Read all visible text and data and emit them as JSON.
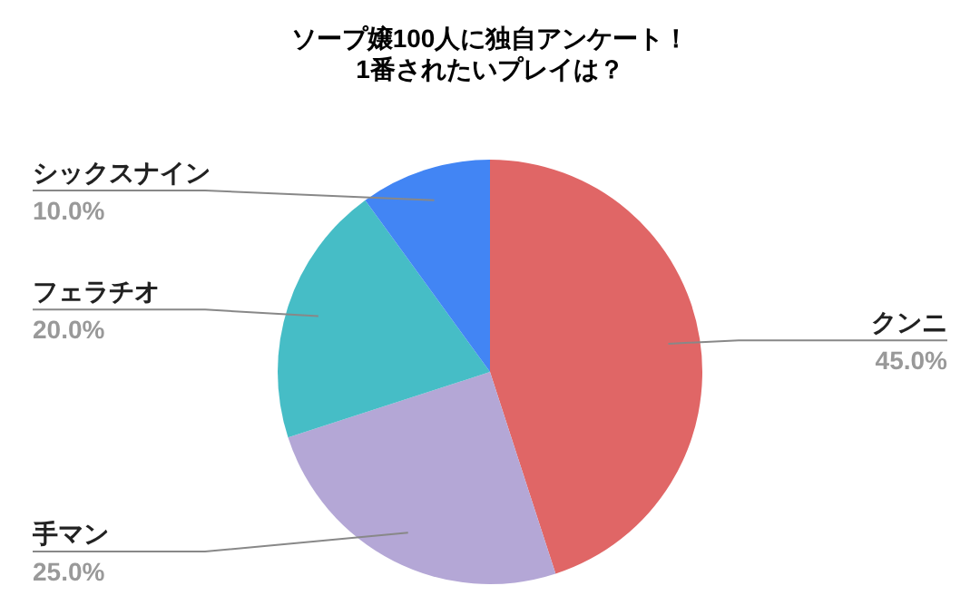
{
  "chart_data": {
    "type": "pie",
    "title": "ソープ嬢100人に独自アンケート！\n1番されたいプレイは？",
    "categories": [
      "クンニ",
      "手マン",
      "フェラチオ",
      "シックスナイン"
    ],
    "values": [
      45,
      25,
      20,
      10
    ],
    "value_labels": [
      "45.0%",
      "25.0%",
      "20.0%",
      "10.0%"
    ],
    "colors": [
      "#e06666",
      "#b4a7d6",
      "#46bdc6",
      "#4285f4"
    ]
  }
}
